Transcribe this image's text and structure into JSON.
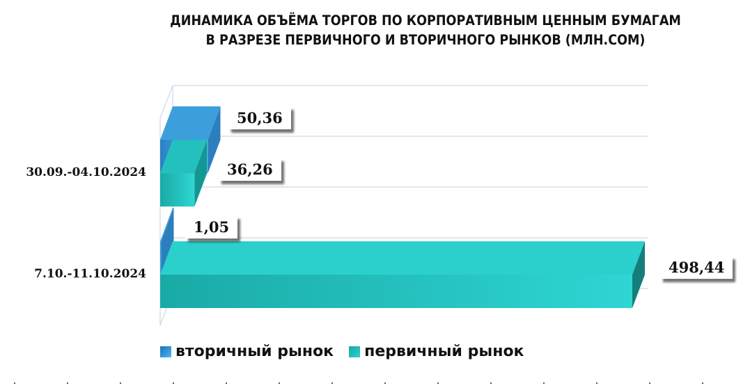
{
  "chart_data": {
    "type": "bar",
    "orientation": "horizontal",
    "title_lines": [
      "ДИНАМИКА ОБЪЁМА ТОРГОВ ПО КОРПОРАТИВНЫМ ЦЕННЫМ БУМАГАМ",
      "В РАЗРЕЗЕ ПЕРВИЧНОГО И ВТОРИЧНОГО РЫНКОВ  (МЛН.СОМ)"
    ],
    "categories": [
      "30.09.-04.10.2024",
      "7.10.-11.10.2024"
    ],
    "series": [
      {
        "name": "вторичный рынок",
        "values": [
          50.36,
          1.05
        ],
        "labels": [
          "50,36",
          "1,05"
        ],
        "color": "#3a9ad9"
      },
      {
        "name": "первичный рынок",
        "values": [
          36.26,
          498.44
        ],
        "labels": [
          "36,26",
          "498,44"
        ],
        "color": "#22c4c1"
      }
    ],
    "xlim": [
      0,
      550
    ],
    "grid": true,
    "legend_position": "bottom",
    "bar_style": "3d"
  }
}
